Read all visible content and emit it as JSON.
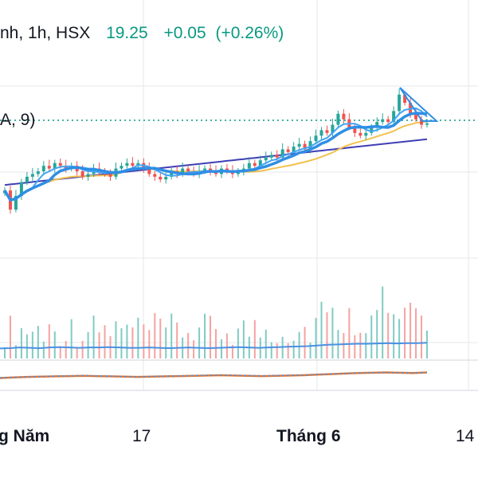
{
  "header": {
    "symbol_text": "nh, 1h, HSX",
    "last_price": "19.25",
    "change": "+0.05",
    "change_pct": "(+0.26%)"
  },
  "indicator_label": "A, 9)",
  "x_axis": {
    "labels": [
      "g Năm",
      "17",
      "Tháng 6",
      "14"
    ]
  },
  "colors": {
    "up": "#26a69a",
    "down": "#ef5350",
    "ma_fast": "#42a5f5",
    "ma_fast_thick": "#2f8ee5",
    "ma_mid": "#f2c14e",
    "ma_slow": "#3f3fb5",
    "volume_ma": "#4a90e2",
    "oscillator": "#e8762e",
    "price_line": "#089981",
    "text": "#131722"
  },
  "chart_data": {
    "type": "candlestick",
    "last_price": 19.25,
    "price_close": [
      16.8,
      16.1,
      16.6,
      17.1,
      17.3,
      17.4,
      17.5,
      17.7,
      17.6,
      17.8,
      17.7,
      17.6,
      17.7,
      17.5,
      17.3,
      17.4,
      17.6,
      17.5,
      17.4,
      17.3,
      17.6,
      17.7,
      17.8,
      17.7,
      17.8,
      17.6,
      17.4,
      17.3,
      17.2,
      17.3,
      17.5,
      17.4,
      17.6,
      17.5,
      17.4,
      17.5,
      17.6,
      17.5,
      17.4,
      17.6,
      17.5,
      17.4,
      17.5,
      17.6,
      17.8,
      17.7,
      17.9,
      18.0,
      18.1,
      18.0,
      18.3,
      18.2,
      18.4,
      18.5,
      18.3,
      18.6,
      18.8,
      19.0,
      18.9,
      19.2,
      19.6,
      19.4,
      19.1,
      18.9,
      18.8,
      18.9,
      19.1,
      19.3,
      19.4,
      19.3,
      19.7,
      20.3,
      20.0,
      19.6,
      19.4,
      19.2,
      19.25
    ],
    "volume_ma": [
      0.3,
      0.31,
      0.33,
      0.32,
      0.31,
      0.33,
      0.34,
      0.33,
      0.32,
      0.33,
      0.33,
      0.34,
      0.33,
      0.32,
      0.32,
      0.33,
      0.32,
      0.31,
      0.32,
      0.33,
      0.32,
      0.31,
      0.32,
      0.33,
      0.34,
      0.33,
      0.32,
      0.33,
      0.34,
      0.35,
      0.36,
      0.37,
      0.39,
      0.41,
      0.42,
      0.43,
      0.44,
      0.44,
      0.45,
      0.46,
      0.45,
      0.46,
      0.46,
      0.47
    ],
    "oscillator": [
      0.1,
      0.12,
      0.14,
      0.15,
      0.16,
      0.17,
      0.18,
      0.17,
      0.16,
      0.15,
      0.14,
      0.15,
      0.16,
      0.17,
      0.18,
      0.19,
      0.2,
      0.19,
      0.18,
      0.17,
      0.18,
      0.19,
      0.2,
      0.22,
      0.24,
      0.26,
      0.28,
      0.29,
      0.3,
      0.29,
      0.28,
      0.3
    ]
  }
}
